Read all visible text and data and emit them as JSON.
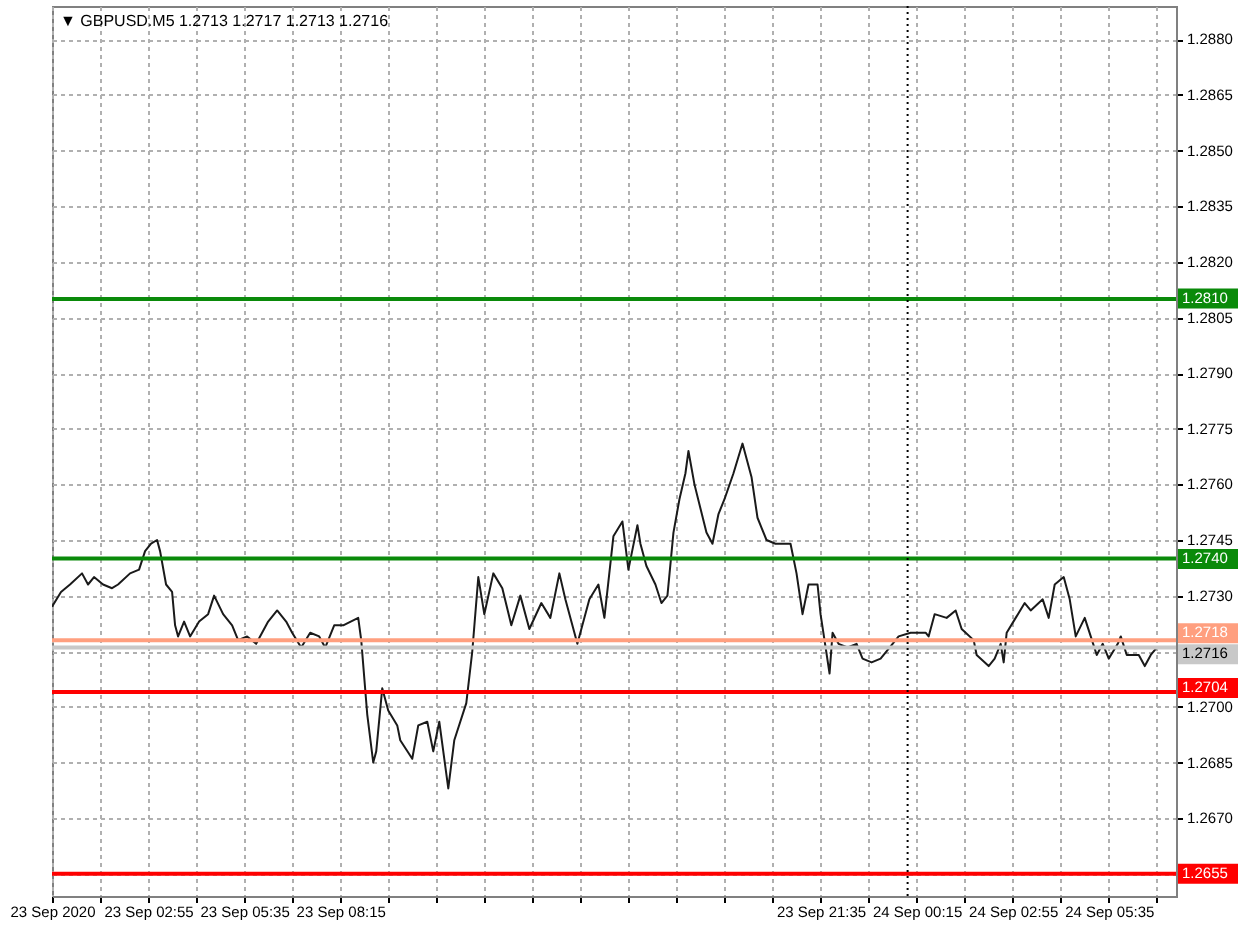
{
  "chart_data": {
    "type": "line",
    "title": "▼ GBPUSD.M5 1.2713 1.2717 1.2713 1.2716",
    "x": [
      "2020-09-23T00:15",
      "2020-09-23T00:30",
      "2020-09-23T00:45",
      "2020-09-23T01:05",
      "2020-09-23T01:15",
      "2020-09-23T01:25",
      "2020-09-23T01:40",
      "2020-09-23T01:55",
      "2020-09-23T02:05",
      "2020-09-23T02:25",
      "2020-09-23T02:40",
      "2020-09-23T02:50",
      "2020-09-23T03:00",
      "2020-09-23T03:10",
      "2020-09-23T03:15",
      "2020-09-23T03:25",
      "2020-09-23T03:35",
      "2020-09-23T03:40",
      "2020-09-23T03:45",
      "2020-09-23T03:55",
      "2020-09-23T04:05",
      "2020-09-23T04:20",
      "2020-09-23T04:35",
      "2020-09-23T04:45",
      "2020-09-23T05:00",
      "2020-09-23T05:15",
      "2020-09-23T05:25",
      "2020-09-23T05:40",
      "2020-09-23T05:55",
      "2020-09-23T06:15",
      "2020-09-23T06:30",
      "2020-09-23T06:45",
      "2020-09-23T06:55",
      "2020-09-23T07:10",
      "2020-09-23T07:25",
      "2020-09-23T07:40",
      "2020-09-23T07:50",
      "2020-09-23T08:05",
      "2020-09-23T08:20",
      "2020-09-23T08:45",
      "2020-09-23T08:50",
      "2020-09-23T09:00",
      "2020-09-23T09:10",
      "2020-09-23T09:15",
      "2020-09-23T09:25",
      "2020-09-23T09:35",
      "2020-09-23T09:50",
      "2020-09-23T09:55",
      "2020-09-23T10:15",
      "2020-09-23T10:25",
      "2020-09-23T10:40",
      "2020-09-23T10:50",
      "2020-09-23T11:00",
      "2020-09-23T11:15",
      "2020-09-23T11:25",
      "2020-09-23T11:45",
      "2020-09-23T11:55",
      "2020-09-23T12:05",
      "2020-09-23T12:15",
      "2020-09-23T12:30",
      "2020-09-23T12:45",
      "2020-09-23T13:00",
      "2020-09-23T13:15",
      "2020-09-23T13:30",
      "2020-09-23T13:50",
      "2020-09-23T14:05",
      "2020-09-23T14:20",
      "2020-09-23T14:30",
      "2020-09-23T14:50",
      "2020-09-23T15:10",
      "2020-09-23T15:25",
      "2020-09-23T15:35",
      "2020-09-23T15:50",
      "2020-09-23T16:05",
      "2020-09-23T16:15",
      "2020-09-23T16:30",
      "2020-09-23T16:35",
      "2020-09-23T16:45",
      "2020-09-23T17:00",
      "2020-09-23T17:10",
      "2020-09-23T17:20",
      "2020-09-23T17:30",
      "2020-09-23T17:40",
      "2020-09-23T17:50",
      "2020-09-23T17:55",
      "2020-09-23T18:05",
      "2020-09-23T18:25",
      "2020-09-23T18:35",
      "2020-09-23T18:45",
      "2020-09-23T18:55",
      "2020-09-23T19:10",
      "2020-09-23T19:25",
      "2020-09-23T19:40",
      "2020-09-23T19:50",
      "2020-09-23T20:05",
      "2020-09-23T20:20",
      "2020-09-23T20:45",
      "2020-09-23T20:55",
      "2020-09-23T21:05",
      "2020-09-23T21:15",
      "2020-09-23T21:30",
      "2020-09-23T21:35",
      "2020-09-23T21:50",
      "2020-09-23T21:55",
      "2020-09-23T22:05",
      "2020-09-23T22:20",
      "2020-09-23T22:35",
      "2020-09-23T22:45",
      "2020-09-23T23:00",
      "2020-09-23T23:15",
      "2020-09-23T23:35",
      "2020-09-23T23:45",
      "2020-09-24T00:05",
      "2020-09-24T00:30",
      "2020-09-24T00:35",
      "2020-09-24T00:45",
      "2020-09-24T01:05",
      "2020-09-24T01:20",
      "2020-09-24T01:30",
      "2020-09-24T01:50",
      "2020-09-24T01:55",
      "2020-09-24T02:15",
      "2020-09-24T02:25",
      "2020-09-24T02:35",
      "2020-09-24T02:40",
      "2020-09-24T02:45",
      "2020-09-24T03:00",
      "2020-09-24T03:15",
      "2020-09-24T03:25",
      "2020-09-24T03:45",
      "2020-09-24T03:55",
      "2020-09-24T04:05",
      "2020-09-24T04:20",
      "2020-09-24T04:30",
      "2020-09-24T04:40",
      "2020-09-24T04:55",
      "2020-09-24T05:05",
      "2020-09-24T05:15",
      "2020-09-24T05:25",
      "2020-09-24T05:35",
      "2020-09-24T05:50",
      "2020-09-24T05:55",
      "2020-09-24T06:05",
      "2020-09-24T06:25",
      "2020-09-24T06:35",
      "2020-09-24T06:45",
      "2020-09-24T06:55"
    ],
    "series": [
      {
        "color": "#1a1a1a",
        "values": [
          1.2727,
          1.2731,
          1.2733,
          1.2736,
          1.2733,
          1.2735,
          1.2733,
          1.2732,
          1.2733,
          1.2736,
          1.2737,
          1.2742,
          1.2744,
          1.2745,
          1.2742,
          1.2733,
          1.2731,
          1.2722,
          1.2719,
          1.2723,
          1.2719,
          1.2723,
          1.2725,
          1.273,
          1.2725,
          1.2722,
          1.2718,
          1.2719,
          1.2717,
          1.2723,
          1.2726,
          1.2723,
          1.272,
          1.2716,
          1.272,
          1.2719,
          1.2716,
          1.2722,
          1.2722,
          1.2724,
          1.2718,
          1.2698,
          1.2685,
          1.2688,
          1.2705,
          1.2699,
          1.2695,
          1.2691,
          1.2686,
          1.2695,
          1.2696,
          1.2688,
          1.2696,
          1.2678,
          1.2691,
          1.2701,
          1.2715,
          1.2735,
          1.2725,
          1.2736,
          1.2732,
          1.2722,
          1.273,
          1.2721,
          1.2728,
          1.2724,
          1.2736,
          1.2729,
          1.2717,
          1.2729,
          1.2733,
          1.2724,
          1.2746,
          1.275,
          1.2737,
          1.2749,
          1.2744,
          1.2738,
          1.2733,
          1.2728,
          1.273,
          1.2747,
          1.2756,
          1.2763,
          1.2769,
          1.276,
          1.2747,
          1.2744,
          1.2752,
          1.2756,
          1.2763,
          1.2771,
          1.2762,
          1.2751,
          1.2745,
          1.2744,
          1.2744,
          1.2736,
          1.2725,
          1.2733,
          1.2733,
          1.2725,
          1.2709,
          1.272,
          1.2717,
          1.2716,
          1.2717,
          1.2713,
          1.2712,
          1.2713,
          1.2717,
          1.2719,
          1.272,
          1.272,
          1.2719,
          1.2725,
          1.2724,
          1.2726,
          1.2721,
          1.2718,
          1.2714,
          1.2711,
          1.2713,
          1.2717,
          1.2712,
          1.272,
          1.2724,
          1.2728,
          1.2726,
          1.2729,
          1.2724,
          1.2733,
          1.2735,
          1.2729,
          1.2719,
          1.2724,
          1.2719,
          1.2714,
          1.2717,
          1.2713,
          1.2717,
          1.2719,
          1.2714,
          1.2714,
          1.2711,
          1.2714,
          1.2716
        ]
      }
    ],
    "xlim": [
      "2020-09-23T00:15",
      "2020-09-24T07:27"
    ],
    "xticks": [
      {
        "value": "2020-09-23T00:15",
        "label": "23 Sep 2020"
      },
      {
        "value": "2020-09-23T01:35",
        "label": null
      },
      {
        "value": "2020-09-23T02:55",
        "label": "23 Sep 02:55"
      },
      {
        "value": "2020-09-23T04:15",
        "label": null
      },
      {
        "value": "2020-09-23T05:35",
        "label": "23 Sep 05:35"
      },
      {
        "value": "2020-09-23T06:55",
        "label": null
      },
      {
        "value": "2020-09-23T08:15",
        "label": "23 Sep 08:15"
      },
      {
        "value": "2020-09-23T09:35",
        "label": null
      },
      {
        "value": "2020-09-23T10:55",
        "label": null
      },
      {
        "value": "2020-09-23T12:15",
        "label": null
      },
      {
        "value": "2020-09-23T13:35",
        "label": null
      },
      {
        "value": "2020-09-23T14:55",
        "label": null
      },
      {
        "value": "2020-09-23T16:15",
        "label": null
      },
      {
        "value": "2020-09-23T17:35",
        "label": null
      },
      {
        "value": "2020-09-23T18:55",
        "label": null
      },
      {
        "value": "2020-09-23T20:15",
        "label": null
      },
      {
        "value": "2020-09-23T21:35",
        "label": "23 Sep 21:35"
      },
      {
        "value": "2020-09-23T22:55",
        "label": null
      },
      {
        "value": "2020-09-24T00:15",
        "label": "24 Sep 00:15"
      },
      {
        "value": "2020-09-24T01:35",
        "label": null
      },
      {
        "value": "2020-09-24T02:55",
        "label": "24 Sep 02:55"
      },
      {
        "value": "2020-09-24T04:15",
        "label": null
      },
      {
        "value": "2020-09-24T05:35",
        "label": "24 Sep 05:35"
      },
      {
        "value": "2020-09-24T06:55",
        "label": null
      }
    ],
    "ylim": [
      1.2649,
      1.2889
    ],
    "yticks": [
      {
        "value": 1.288,
        "label": "1.2880"
      },
      {
        "value": 1.2865,
        "label": "1.2865"
      },
      {
        "value": 1.285,
        "label": "1.2850"
      },
      {
        "value": 1.2835,
        "label": "1.2835"
      },
      {
        "value": 1.282,
        "label": "1.2820"
      },
      {
        "value": 1.2805,
        "label": "1.2805"
      },
      {
        "value": 1.279,
        "label": "1.2790"
      },
      {
        "value": 1.2775,
        "label": "1.2775"
      },
      {
        "value": 1.276,
        "label": "1.2760"
      },
      {
        "value": 1.2745,
        "label": "1.2745"
      },
      {
        "value": 1.273,
        "label": "1.2730"
      },
      {
        "value": 1.2715,
        "label": null
      },
      {
        "value": 1.27,
        "label": "1.2700"
      },
      {
        "value": 1.2685,
        "label": "1.2685"
      },
      {
        "value": 1.267,
        "label": "1.2670"
      },
      {
        "value": 1.2655,
        "label": null
      }
    ],
    "ref_lines": [
      {
        "axis": "y",
        "value": 1.281,
        "label": "1.2810",
        "color": "#0a8a0a"
      },
      {
        "axis": "y",
        "value": 1.274,
        "label": "1.2740",
        "color": "#0a8a0a"
      },
      {
        "axis": "y",
        "value": 1.2718,
        "label": "1.2718",
        "color": "#ff9f7f"
      },
      {
        "axis": "y",
        "value": 1.2716,
        "label": "1.2716",
        "color": "#c8c8c8"
      },
      {
        "axis": "y",
        "value": 1.2704,
        "label": "1.2704",
        "color": "#ff0000"
      },
      {
        "axis": "y",
        "value": 1.2655,
        "label": "1.2655",
        "color": "#ff0000"
      },
      {
        "axis": "x",
        "value": "2020-09-24T00:00",
        "color": "#000000",
        "line_style": "dotted"
      }
    ],
    "grid": true
  }
}
